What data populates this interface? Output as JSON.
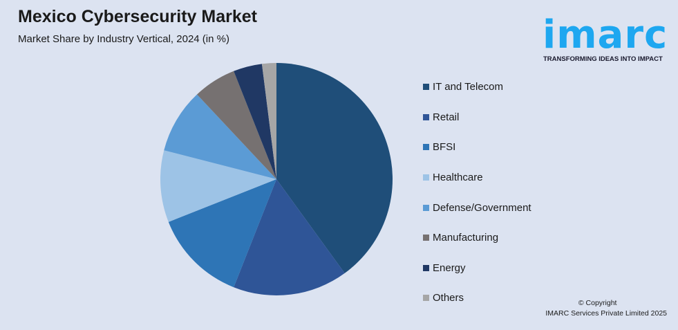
{
  "header": {
    "title": "Mexico Cybersecurity Market",
    "subtitle": "Market Share by Industry Vertical, 2024 (in %)"
  },
  "logo": {
    "word": "imarc",
    "tagline": "TRANSFORMING IDEAS INTO IMPACT",
    "color": "#1ea7f0"
  },
  "footer": {
    "line1": "© Copyright",
    "line2": "IMARC Services Private Limited 2025"
  },
  "chart_data": {
    "type": "pie",
    "title": "Mexico Cybersecurity Market",
    "subtitle": "Market Share by Industry Vertical, 2024 (in %)",
    "legend_position": "right",
    "categories": [
      "IT and Telecom",
      "Retail",
      "BFSI",
      "Healthcare",
      "Defense/Government",
      "Manufacturing",
      "Energy",
      "Others"
    ],
    "values": [
      40,
      16,
      13,
      10,
      9,
      6,
      4,
      2
    ],
    "colors": [
      "#1f4e79",
      "#2f5597",
      "#2e75b6",
      "#9dc3e6",
      "#5b9bd5",
      "#767171",
      "#203864",
      "#a6a6a6"
    ]
  }
}
